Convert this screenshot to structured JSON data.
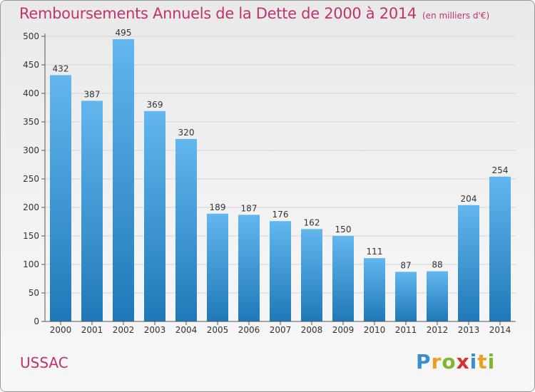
{
  "title": "Remboursements Annuels de la Dette de 2000 à 2014",
  "unit": "(en milliers d'€)",
  "commune": "USSAC",
  "brand": {
    "letters": [
      "P",
      "r",
      "o",
      "x",
      "i",
      "t",
      "i"
    ],
    "colors": [
      "#3a8fd0",
      "#e8a020",
      "#7cb82f",
      "#d9302d",
      "#3a8fd0",
      "#e8a020",
      "#7cb82f"
    ]
  },
  "colors": {
    "bar_light": "#63b6ee",
    "bar_dark": "#1f79b8",
    "accent": "#c0336b"
  },
  "chart_data": {
    "type": "bar",
    "categories": [
      "2000",
      "2001",
      "2002",
      "2003",
      "2004",
      "2005",
      "2006",
      "2007",
      "2008",
      "2009",
      "2010",
      "2011",
      "2012",
      "2013",
      "2014"
    ],
    "values": [
      432,
      387,
      495,
      369,
      320,
      189,
      187,
      176,
      162,
      150,
      111,
      87,
      88,
      204,
      254
    ],
    "title": "Remboursements Annuels de la Dette de 2000 à 2014",
    "xlabel": "",
    "ylabel": "",
    "ylim": [
      0,
      500
    ],
    "yticks": [
      0,
      50,
      100,
      150,
      200,
      250,
      300,
      350,
      400,
      450,
      500
    ],
    "grid": true,
    "legend": "none"
  }
}
